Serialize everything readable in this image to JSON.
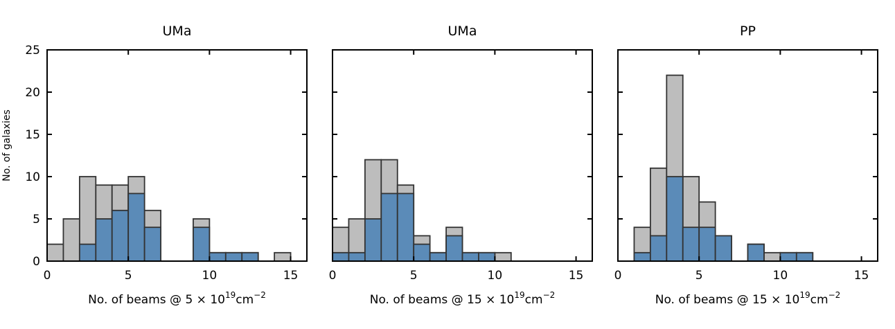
{
  "chart_data": {
    "ylabel": "No. of galaxies",
    "colors": {
      "all": "#bdbdbd",
      "subset": "#5b8bb8",
      "edge": "#333333"
    },
    "panels": [
      {
        "type": "bar",
        "title": "UMa",
        "xlabel_prefix": "No. of beams @ 5 × 10",
        "xlabel_exp": "19",
        "xlabel_unit": "cm",
        "xlabel_unit_exp": "−2",
        "xlim": [
          0,
          16
        ],
        "ylim": [
          0,
          25
        ],
        "xticks": [
          0,
          5,
          10,
          15
        ],
        "yticks": [
          0,
          5,
          10,
          15,
          20,
          25
        ],
        "bin_starts": [
          0,
          1,
          2,
          3,
          4,
          5,
          6,
          7,
          8,
          9,
          10,
          11,
          12,
          13,
          14,
          15
        ],
        "series": [
          {
            "role": "all",
            "values": [
              2,
              5,
              10,
              9,
              9,
              10,
              6,
              0,
              0,
              5,
              1,
              1,
              1,
              0,
              1,
              0
            ]
          },
          {
            "role": "subset",
            "values": [
              0,
              0,
              2,
              5,
              6,
              8,
              4,
              0,
              0,
              4,
              1,
              1,
              1,
              0,
              0,
              0
            ]
          }
        ]
      },
      {
        "type": "bar",
        "title": "UMa",
        "xlabel_prefix": "No. of beams @ 15 × 10",
        "xlabel_exp": "19",
        "xlabel_unit": "cm",
        "xlabel_unit_exp": "−2",
        "xlim": [
          0,
          16
        ],
        "ylim": [
          0,
          25
        ],
        "xticks": [
          0,
          5,
          10,
          15
        ],
        "yticks": [
          0,
          5,
          10,
          15,
          20,
          25
        ],
        "bin_starts": [
          0,
          1,
          2,
          3,
          4,
          5,
          6,
          7,
          8,
          9,
          10,
          11,
          12,
          13,
          14,
          15
        ],
        "series": [
          {
            "role": "all",
            "values": [
              4,
              5,
              12,
              12,
              9,
              3,
              1,
              4,
              1,
              1,
              1,
              0,
              0,
              0,
              0,
              0
            ]
          },
          {
            "role": "subset",
            "values": [
              1,
              1,
              5,
              8,
              8,
              2,
              1,
              3,
              1,
              1,
              0,
              0,
              0,
              0,
              0,
              0
            ]
          }
        ]
      },
      {
        "type": "bar",
        "title": "PP",
        "xlabel_prefix": "No. of beams @ 15 × 10",
        "xlabel_exp": "19",
        "xlabel_unit": "cm",
        "xlabel_unit_exp": "−2",
        "xlim": [
          0,
          16
        ],
        "ylim": [
          0,
          25
        ],
        "xticks": [
          0,
          5,
          10,
          15
        ],
        "yticks": [
          0,
          5,
          10,
          15,
          20,
          25
        ],
        "bin_starts": [
          0,
          1,
          2,
          3,
          4,
          5,
          6,
          7,
          8,
          9,
          10,
          11,
          12,
          13,
          14,
          15
        ],
        "series": [
          {
            "role": "all",
            "values": [
              0,
              4,
              11,
              22,
              10,
              7,
              3,
              0,
              2,
              1,
              1,
              1,
              0,
              0,
              0,
              0
            ]
          },
          {
            "role": "subset",
            "values": [
              0,
              1,
              3,
              10,
              4,
              4,
              3,
              0,
              2,
              0,
              1,
              1,
              0,
              0,
              0,
              0
            ]
          }
        ]
      }
    ]
  }
}
